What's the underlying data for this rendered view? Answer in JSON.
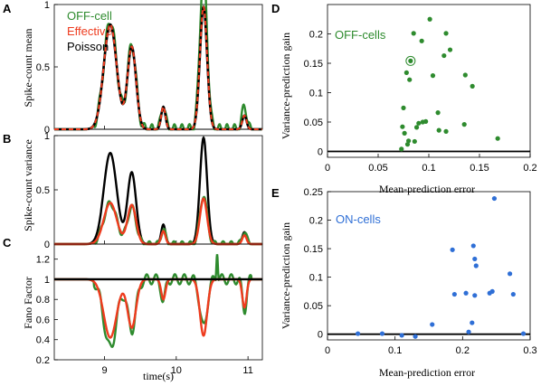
{
  "panels": {
    "A": "A",
    "B": "B",
    "C": "C",
    "D": "D",
    "E": "E"
  },
  "colors": {
    "off_cell": "#2e8b2e",
    "effective": "#ee3b1e",
    "poisson": "#000000",
    "on_cell": "#2f6fd6"
  },
  "chart_data": [
    {
      "id": "A",
      "type": "line",
      "ylabel": "Spike-count mean",
      "ylim": [
        0,
        1
      ],
      "yticks": [
        0,
        0.5,
        1
      ],
      "xlim": [
        8.3,
        11.2
      ],
      "legend": [
        {
          "name": "OFF-cell",
          "color": "#2e8b2e"
        },
        {
          "name": "Effective",
          "color": "#ee3b1e"
        },
        {
          "name": "Poisson",
          "color": "#000000"
        }
      ],
      "peaks": {
        "x": [
          9.08,
          9.38,
          9.82,
          10.38,
          10.95
        ],
        "widths": [
          0.09,
          0.06,
          0.03,
          0.05,
          0.03
        ],
        "poisson": [
          0.84,
          0.66,
          0.18,
          0.98,
          0.11
        ],
        "effective": [
          0.84,
          0.66,
          0.18,
          0.98,
          0.11
        ],
        "offcell": [
          0.87,
          0.68,
          0.2,
          1.28,
          0.2
        ]
      }
    },
    {
      "id": "B",
      "type": "line",
      "ylabel": "Spike-count variance",
      "ylim": [
        0,
        1
      ],
      "yticks": [
        0,
        0.5,
        1
      ],
      "xlim": [
        8.3,
        11.2
      ],
      "peaks": {
        "x": [
          9.08,
          9.38,
          9.82,
          10.38,
          10.95
        ],
        "widths": [
          0.09,
          0.06,
          0.03,
          0.05,
          0.03
        ],
        "poisson": [
          0.84,
          0.66,
          0.18,
          0.98,
          0.11
        ],
        "effective": [
          0.38,
          0.36,
          0.12,
          0.42,
          0.08
        ],
        "offcell": [
          0.38,
          0.34,
          0.14,
          0.45,
          0.12
        ]
      }
    },
    {
      "id": "C",
      "type": "line",
      "ylabel": "Fano Factor",
      "ylim": [
        0.2,
        1.35
      ],
      "yticks": [
        0.2,
        0.4,
        0.6,
        0.8,
        1,
        1.2
      ],
      "xlim": [
        8.3,
        11.2
      ],
      "xticks": [
        9,
        10,
        11
      ],
      "xlabel": "time(s)",
      "dips": {
        "x": [
          9.08,
          9.38,
          9.82,
          10.38,
          10.95
        ],
        "widths": [
          0.09,
          0.06,
          0.03,
          0.05,
          0.03
        ],
        "effective": [
          0.42,
          0.52,
          0.8,
          0.44,
          0.72
        ],
        "offcell": [
          0.32,
          0.5,
          0.78,
          0.52,
          0.7
        ]
      }
    },
    {
      "id": "D",
      "type": "scatter",
      "label": "OFF-cells",
      "color": "#2e8b2e",
      "xlabel": "Mean-prediction error",
      "ylabel": "Variance-prediction gain",
      "xlim": [
        0,
        0.2
      ],
      "ylim": [
        -0.01,
        0.25
      ],
      "xticks": [
        0,
        0.05,
        0.1,
        0.15,
        0.2
      ],
      "yticks": [
        0,
        0.05,
        0.1,
        0.15,
        0.2
      ],
      "highlight_index": 0,
      "x": [
        0.082,
        0.085,
        0.101,
        0.093,
        0.117,
        0.121,
        0.115,
        0.104,
        0.081,
        0.078,
        0.136,
        0.143,
        0.097,
        0.094,
        0.09,
        0.088,
        0.075,
        0.074,
        0.076,
        0.08,
        0.109,
        0.11,
        0.117,
        0.135,
        0.168,
        0.073,
        0.086,
        0.079
      ],
      "y": [
        0.154,
        0.201,
        0.225,
        0.188,
        0.201,
        0.173,
        0.163,
        0.129,
        0.122,
        0.134,
        0.13,
        0.111,
        0.051,
        0.05,
        0.048,
        0.041,
        0.074,
        0.042,
        0.031,
        0.018,
        0.066,
        0.036,
        0.034,
        0.046,
        0.022,
        0.004,
        0.017,
        0.012
      ]
    },
    {
      "id": "E",
      "type": "scatter",
      "label": "ON-cells",
      "color": "#2f6fd6",
      "xlabel": "Mean-prediction error",
      "ylabel": "Variance-prediction gain",
      "xlim": [
        0,
        0.3
      ],
      "ylim": [
        -0.01,
        0.25
      ],
      "xticks": [
        0,
        0.1,
        0.2,
        0.3
      ],
      "yticks": [
        0,
        0.05,
        0.1,
        0.15,
        0.2,
        0.25
      ],
      "x": [
        0.045,
        0.081,
        0.11,
        0.13,
        0.155,
        0.185,
        0.188,
        0.205,
        0.216,
        0.218,
        0.22,
        0.218,
        0.214,
        0.209,
        0.24,
        0.244,
        0.247,
        0.27,
        0.275,
        0.29
      ],
      "y": [
        0.001,
        0.001,
        -0.002,
        -0.004,
        0.017,
        0.148,
        0.07,
        0.072,
        0.155,
        0.132,
        0.12,
        0.068,
        0.02,
        0.004,
        0.072,
        0.075,
        0.238,
        0.106,
        0.07,
        0.001
      ]
    }
  ]
}
